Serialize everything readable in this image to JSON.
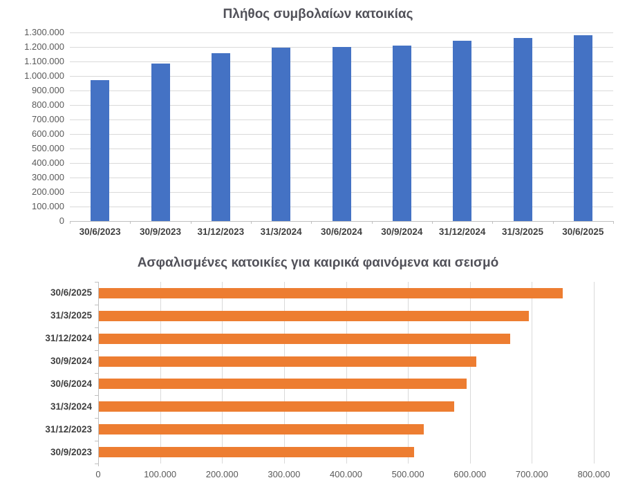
{
  "chart_data": [
    {
      "type": "bar",
      "orientation": "vertical",
      "title": "Πλήθος συμβολαίων κατοικίας",
      "categories": [
        "30/6/2023",
        "30/9/2023",
        "31/12/2023",
        "31/3/2024",
        "30/6/2024",
        "30/9/2024",
        "31/12/2024",
        "31/3/2025",
        "30/6/2025"
      ],
      "values": [
        970000,
        1085000,
        1155000,
        1195000,
        1200000,
        1210000,
        1245000,
        1260000,
        1280000
      ],
      "ylim": [
        0,
        1300000
      ],
      "ytick_step": 100000,
      "yticks": [
        "0",
        "100.000",
        "200.000",
        "300.000",
        "400.000",
        "500.000",
        "600.000",
        "700.000",
        "800.000",
        "900.000",
        "1.000.000",
        "1.100.000",
        "1.200.000",
        "1.300.000"
      ],
      "xlabel": "",
      "ylabel": "",
      "grid": true,
      "legend": false,
      "bar_color": "#4472C4"
    },
    {
      "type": "bar",
      "orientation": "horizontal",
      "title": "Ασφαλισμένες κατοικίες για καιρικά φαινόμενα και σεισμό",
      "categories": [
        "30/6/2025",
        "31/3/2025",
        "31/12/2024",
        "30/9/2024",
        "30/6/2024",
        "31/3/2024",
        "31/12/2023",
        "30/9/2023"
      ],
      "values": [
        750000,
        695000,
        665000,
        610000,
        595000,
        575000,
        525000,
        510000
      ],
      "xlim": [
        0,
        800000
      ],
      "xtick_step": 100000,
      "xticks": [
        "0",
        "100.000",
        "200.000",
        "300.000",
        "400.000",
        "500.000",
        "600.000",
        "700.000",
        "800.000"
      ],
      "xlabel": "",
      "ylabel": "",
      "grid": true,
      "legend": false,
      "bar_color": "#ED7D31"
    }
  ],
  "colors": {
    "background": "#FFFFFF",
    "bar_blue": "#4472C4",
    "bar_orange": "#ED7D31",
    "gridline": "#D9D9D9",
    "axis_line": "#BFBFBF",
    "title_text": "#515159",
    "tick_label_text": "#595959",
    "category_label_text": "#3F3F3F"
  }
}
